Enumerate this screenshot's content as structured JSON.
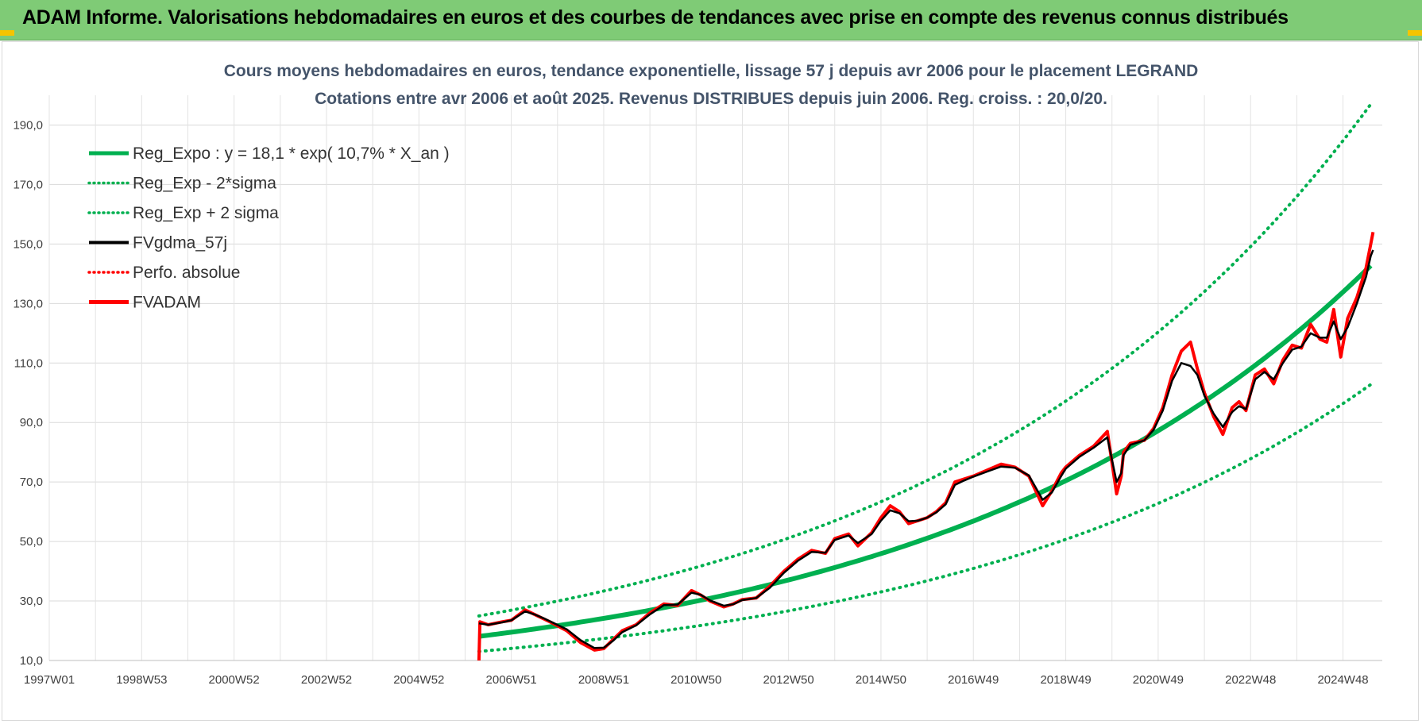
{
  "header": {
    "title": "ADAM Informe. Valorisations hebdomadaires en euros et des courbes de tendances avec prise en compte des revenus connus distribués"
  },
  "colors": {
    "header_bg": "#7fcb76",
    "reg_expo": "#00b050",
    "gdma": "#000000",
    "fvadam": "#ff0000"
  },
  "chart_data": {
    "type": "line",
    "title": "Cours moyens hebdomadaires en euros, tendance exponentielle, lissage 57 j depuis avr 2006 pour le placement LEGRAND",
    "subtitle": "Cotations entre avr 2006 et août 2025. Revenus DISTRIBUES depuis juin 2006. Reg. croiss. : 20,0/20.",
    "y_ticks": [
      "10,0",
      "30,0",
      "50,0",
      "70,0",
      "90,0",
      "110,0",
      "130,0",
      "150,0",
      "170,0",
      "190,0"
    ],
    "ylim": [
      10,
      200
    ],
    "x_ticks": [
      {
        "label": "1997W01",
        "year": 1997.0
      },
      {
        "label": "1998W53",
        "year": 1999.0
      },
      {
        "label": "2000W52",
        "year": 2001.0
      },
      {
        "label": "2002W52",
        "year": 2003.0
      },
      {
        "label": "2004W52",
        "year": 2005.0
      },
      {
        "label": "2006W51",
        "year": 2007.0
      },
      {
        "label": "2008W51",
        "year": 2009.0
      },
      {
        "label": "2010W50",
        "year": 2011.0
      },
      {
        "label": "2012W50",
        "year": 2013.0
      },
      {
        "label": "2014W50",
        "year": 2015.0
      },
      {
        "label": "2016W49",
        "year": 2017.0
      },
      {
        "label": "2018W49",
        "year": 2019.0
      },
      {
        "label": "2020W49",
        "year": 2021.0
      },
      {
        "label": "2022W48",
        "year": 2023.0
      },
      {
        "label": "2024W48",
        "year": 2025.0
      }
    ],
    "xlim": [
      1997.0,
      2025.85
    ],
    "grid": true,
    "legend_position": "top-left",
    "legend": [
      {
        "label": "Reg_Expo : y = 18,1 * exp( 10,7% *  X_an )",
        "color": "#00b050",
        "style": "solid-thick"
      },
      {
        "label": "Reg_Exp - 2*sigma",
        "color": "#00b050",
        "style": "dotted"
      },
      {
        "label": "Reg_Exp + 2 sigma",
        "color": "#00b050",
        "style": "dotted"
      },
      {
        "label": "FVgdma_57j",
        "color": "#000000",
        "style": "solid"
      },
      {
        "label": "Perfo. absolue",
        "color": "#ff0000",
        "style": "dotted"
      },
      {
        "label": "FVADAM",
        "color": "#ff0000",
        "style": "solid-thick"
      }
    ],
    "regression": {
      "a": 18.1,
      "rate": 0.107,
      "start_year": 2006.3,
      "end_year": 2025.65,
      "lower_factor": 0.72,
      "upper_factor": 1.38
    },
    "series": [
      {
        "name": "FVADAM",
        "color": "#ff0000",
        "x": [
          2006.3,
          2006.32,
          2006.5,
          2006.8,
          2007.0,
          2007.3,
          2007.5,
          2007.7,
          2007.9,
          2008.2,
          2008.5,
          2008.8,
          2009.0,
          2009.2,
          2009.4,
          2009.7,
          2010.0,
          2010.3,
          2010.6,
          2010.9,
          2011.1,
          2011.3,
          2011.6,
          2011.8,
          2012.0,
          2012.3,
          2012.6,
          2012.9,
          2013.2,
          2013.5,
          2013.8,
          2014.0,
          2014.3,
          2014.5,
          2014.8,
          2015.0,
          2015.2,
          2015.4,
          2015.6,
          2015.8,
          2016.0,
          2016.2,
          2016.4,
          2016.6,
          2016.8,
          2017.0,
          2017.3,
          2017.6,
          2017.9,
          2018.2,
          2018.5,
          2018.7,
          2018.9,
          2019.0,
          2019.3,
          2019.6,
          2019.9,
          2020.1,
          2020.2,
          2020.25,
          2020.4,
          2020.7,
          2020.9,
          2021.1,
          2021.3,
          2021.5,
          2021.7,
          2021.85,
          2022.0,
          2022.2,
          2022.4,
          2022.6,
          2022.75,
          2022.9,
          2023.1,
          2023.3,
          2023.5,
          2023.7,
          2023.9,
          2024.1,
          2024.3,
          2024.5,
          2024.65,
          2024.8,
          2024.95,
          2025.1,
          2025.3,
          2025.5,
          2025.6,
          2025.65
        ],
        "values": [
          10,
          23,
          22,
          23,
          23.5,
          27,
          25.5,
          24,
          22.5,
          20,
          16,
          13.5,
          14,
          17,
          20,
          22,
          26,
          29,
          28.5,
          33.5,
          32,
          30,
          28,
          29,
          30.5,
          31,
          35,
          40,
          44,
          47,
          46,
          51,
          52.5,
          48.5,
          53,
          58,
          62,
          60,
          56,
          57,
          58,
          60,
          63,
          70,
          71,
          72,
          74,
          76,
          75,
          72,
          62,
          67,
          73,
          75,
          79,
          82,
          87,
          66,
          72,
          80,
          83,
          84,
          88,
          95,
          106,
          114,
          117,
          108,
          100,
          92,
          86,
          95,
          97,
          94,
          106,
          108,
          103,
          111,
          116,
          115,
          123,
          118,
          117,
          128,
          112,
          125,
          132,
          142,
          150,
          154
        ]
      },
      {
        "name": "FVgdma_57j",
        "color": "#000000",
        "x": [
          2006.3,
          2006.5,
          2006.8,
          2007.0,
          2007.3,
          2007.5,
          2007.7,
          2007.9,
          2008.2,
          2008.5,
          2008.8,
          2009.0,
          2009.2,
          2009.4,
          2009.7,
          2010.0,
          2010.3,
          2010.6,
          2010.9,
          2011.1,
          2011.3,
          2011.6,
          2011.8,
          2012.0,
          2012.3,
          2012.6,
          2012.9,
          2013.2,
          2013.5,
          2013.8,
          2014.0,
          2014.3,
          2014.5,
          2014.8,
          2015.0,
          2015.2,
          2015.4,
          2015.6,
          2015.8,
          2016.0,
          2016.2,
          2016.4,
          2016.6,
          2016.8,
          2017.0,
          2017.3,
          2017.6,
          2017.9,
          2018.2,
          2018.5,
          2018.7,
          2018.9,
          2019.0,
          2019.3,
          2019.6,
          2019.9,
          2020.1,
          2020.2,
          2020.25,
          2020.4,
          2020.7,
          2020.9,
          2021.1,
          2021.3,
          2021.5,
          2021.7,
          2021.85,
          2022.0,
          2022.2,
          2022.4,
          2022.6,
          2022.75,
          2022.9,
          2023.1,
          2023.3,
          2023.5,
          2023.7,
          2023.9,
          2024.1,
          2024.3,
          2024.5,
          2024.65,
          2024.8,
          2024.95,
          2025.1,
          2025.3,
          2025.5,
          2025.6,
          2025.65
        ],
        "values": [
          22.5,
          22,
          22.8,
          23.5,
          26.5,
          25.5,
          24.2,
          22.7,
          20.5,
          16.8,
          14.2,
          14.3,
          16.6,
          19.5,
          21.8,
          25.5,
          28.6,
          28.8,
          32.8,
          32.1,
          30.2,
          28.4,
          28.9,
          30.3,
          31,
          34.5,
          39.5,
          43.5,
          46.5,
          46.2,
          50.5,
          52,
          49.5,
          52.5,
          57,
          60.5,
          59.5,
          56.8,
          57,
          58,
          59.8,
          62.5,
          69,
          70.5,
          71.8,
          73.5,
          75.2,
          74.8,
          72.2,
          64,
          66.5,
          72,
          74.5,
          78.5,
          81.5,
          85,
          70,
          73,
          79,
          82.5,
          84,
          87.5,
          94,
          104,
          110,
          109,
          106,
          99,
          93,
          88.5,
          93.5,
          95.5,
          94.5,
          104.5,
          107,
          104.5,
          110,
          114.5,
          115.5,
          120,
          118.5,
          118.5,
          124,
          118,
          122,
          130,
          139,
          146,
          148
        ]
      }
    ]
  }
}
